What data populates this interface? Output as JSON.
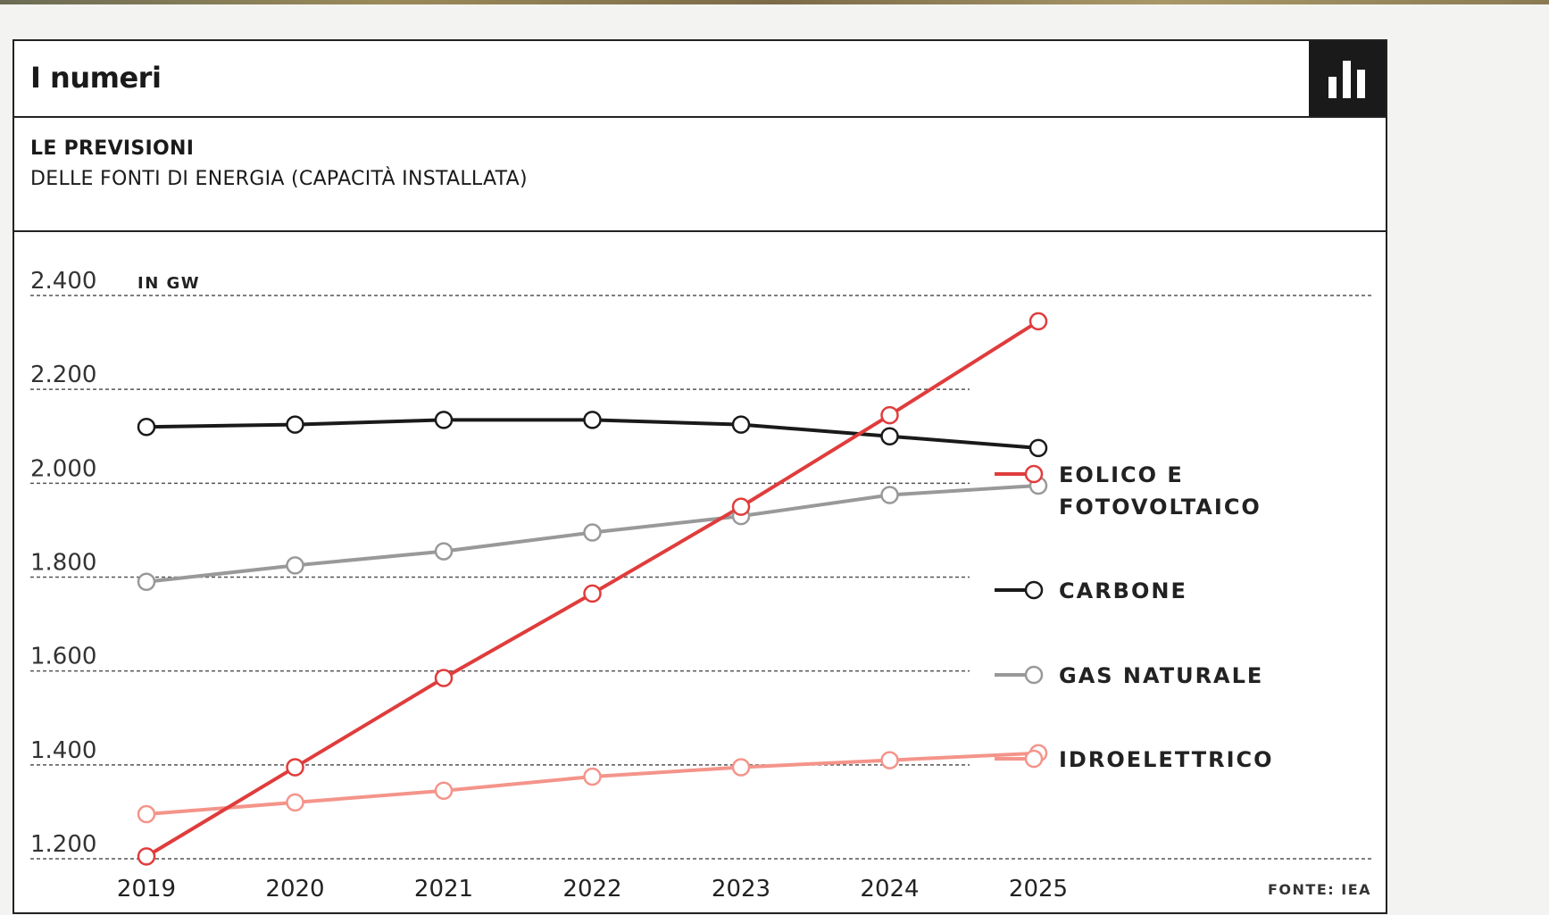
{
  "header": {
    "title": "I numeri",
    "icon": "bar-chart-icon"
  },
  "subheader": {
    "title": "LE PREVISIONI",
    "subtitle": "DELLE FONTI DI ENERGIA (CAPACITÀ INSTALLATA)"
  },
  "chart_data": {
    "type": "line",
    "unit_label": "IN GW",
    "source": "FONTE: IEA",
    "x": [
      "2019",
      "2020",
      "2021",
      "2022",
      "2023",
      "2024",
      "2025"
    ],
    "ylim": [
      1200,
      2400
    ],
    "yticks": [
      1200,
      1400,
      1600,
      1800,
      2000,
      2200,
      2400
    ],
    "ytick_labels": [
      "1.200",
      "1.400",
      "1.600",
      "1.800",
      "2.000",
      "2.200",
      "2.400"
    ],
    "grid": true,
    "legend_position": "right",
    "series": [
      {
        "name": "EOLICO E FOTOVOLTAICO",
        "name_lines": [
          "EOLICO E",
          "FOTOVOLTAICO"
        ],
        "color": "#e03c3c",
        "values": [
          1205,
          1395,
          1585,
          1765,
          1950,
          2145,
          2345
        ]
      },
      {
        "name": "CARBONE",
        "name_lines": [
          "CARBONE"
        ],
        "color": "#1a1a1a",
        "values": [
          2120,
          2125,
          2135,
          2135,
          2125,
          2100,
          2075
        ]
      },
      {
        "name": "GAS NATURALE",
        "name_lines": [
          "GAS NATURALE"
        ],
        "color": "#999999",
        "values": [
          1790,
          1825,
          1855,
          1895,
          1930,
          1975,
          1995
        ]
      },
      {
        "name": "IDROELETTRICO",
        "name_lines": [
          "IDROELETTRICO"
        ],
        "color": "#f4948a",
        "values": [
          1295,
          1320,
          1345,
          1375,
          1395,
          1410,
          1425
        ]
      }
    ]
  }
}
